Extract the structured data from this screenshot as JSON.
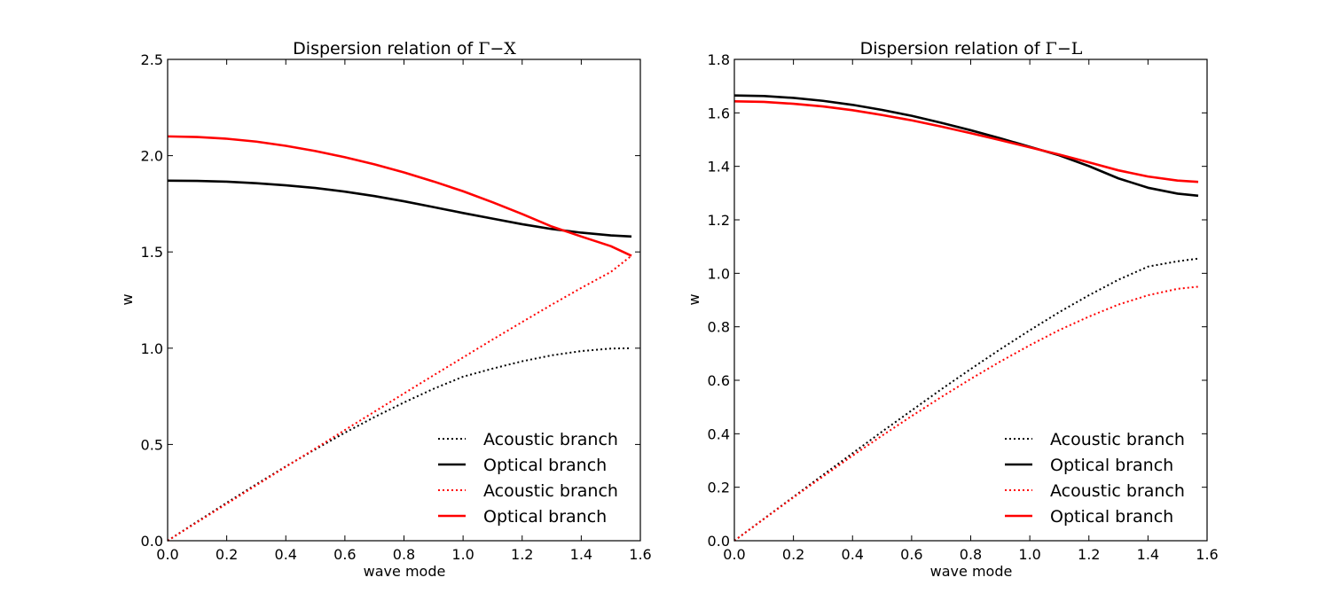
{
  "chart_data": [
    {
      "type": "line",
      "title": "Dispersion relation of ",
      "title_math": "Γ−X",
      "xlabel": "wave mode",
      "ylabel": "w",
      "xlim": [
        0,
        1.6
      ],
      "ylim": [
        0,
        2.5
      ],
      "xticks": [
        "0.0",
        "0.2",
        "0.4",
        "0.6",
        "0.8",
        "1.0",
        "1.2",
        "1.4",
        "1.6"
      ],
      "yticks": [
        "0.0",
        "0.5",
        "1.0",
        "1.5",
        "2.0",
        "2.5"
      ],
      "legend_position": "bottom-right",
      "series": [
        {
          "name": "Acoustic branch",
          "color": "#000000",
          "style": "dotted",
          "x": [
            0,
            0.1,
            0.2,
            0.3,
            0.4,
            0.5,
            0.6,
            0.7,
            0.8,
            0.9,
            1.0,
            1.1,
            1.2,
            1.3,
            1.4,
            1.5,
            1.57
          ],
          "y": [
            0,
            0.099,
            0.197,
            0.293,
            0.386,
            0.475,
            0.561,
            0.642,
            0.718,
            0.789,
            0.852,
            0.894,
            0.932,
            0.963,
            0.985,
            0.998,
            1.0
          ]
        },
        {
          "name": "Optical branch",
          "color": "#000000",
          "style": "solid",
          "x": [
            0,
            0.1,
            0.2,
            0.3,
            0.4,
            0.5,
            0.6,
            0.7,
            0.8,
            0.9,
            1.0,
            1.1,
            1.2,
            1.3,
            1.4,
            1.5,
            1.57
          ],
          "y": [
            1.87,
            1.869,
            1.865,
            1.857,
            1.846,
            1.832,
            1.813,
            1.79,
            1.763,
            1.733,
            1.702,
            1.673,
            1.644,
            1.619,
            1.6,
            1.586,
            1.58
          ]
        },
        {
          "name": "Acoustic branch",
          "color": "#ff0000",
          "style": "dotted",
          "x": [
            0,
            0.1,
            0.2,
            0.3,
            0.4,
            0.5,
            0.6,
            0.7,
            0.8,
            0.9,
            1.0,
            1.1,
            1.2,
            1.3,
            1.4,
            1.5,
            1.57
          ],
          "y": [
            0,
            0.096,
            0.192,
            0.288,
            0.384,
            0.479,
            0.575,
            0.67,
            0.765,
            0.859,
            0.952,
            1.045,
            1.136,
            1.226,
            1.313,
            1.396,
            1.48
          ]
        },
        {
          "name": "Optical branch",
          "color": "#ff0000",
          "style": "solid",
          "x": [
            0,
            0.1,
            0.2,
            0.3,
            0.4,
            0.5,
            0.6,
            0.7,
            0.8,
            0.9,
            1.0,
            1.1,
            1.2,
            1.3,
            1.4,
            1.5,
            1.57
          ],
          "y": [
            2.1,
            2.097,
            2.088,
            2.073,
            2.051,
            2.024,
            1.992,
            1.955,
            1.913,
            1.866,
            1.815,
            1.758,
            1.697,
            1.632,
            1.58,
            1.53,
            1.48
          ]
        }
      ]
    },
    {
      "type": "line",
      "title": "Dispersion relation of ",
      "title_math": "Γ−L",
      "xlabel": "wave mode",
      "ylabel": "w",
      "xlim": [
        0,
        1.6
      ],
      "ylim": [
        0,
        1.8
      ],
      "xticks": [
        "0.0",
        "0.2",
        "0.4",
        "0.6",
        "0.8",
        "1.0",
        "1.2",
        "1.4",
        "1.6"
      ],
      "yticks": [
        "0.0",
        "0.2",
        "0.4",
        "0.6",
        "0.8",
        "1.0",
        "1.2",
        "1.4",
        "1.6",
        "1.8"
      ],
      "legend_position": "bottom-right",
      "series": [
        {
          "name": "Acoustic branch",
          "color": "#000000",
          "style": "dotted",
          "x": [
            0,
            0.1,
            0.2,
            0.3,
            0.4,
            0.5,
            0.6,
            0.7,
            0.8,
            0.9,
            1.0,
            1.1,
            1.2,
            1.3,
            1.4,
            1.5,
            1.57
          ],
          "y": [
            0,
            0.082,
            0.164,
            0.246,
            0.327,
            0.408,
            0.487,
            0.566,
            0.642,
            0.716,
            0.787,
            0.855,
            0.918,
            0.976,
            1.025,
            1.045,
            1.055
          ]
        },
        {
          "name": "Optical branch",
          "color": "#000000",
          "style": "solid",
          "x": [
            0,
            0.1,
            0.2,
            0.3,
            0.4,
            0.5,
            0.6,
            0.7,
            0.8,
            0.9,
            1.0,
            1.1,
            1.2,
            1.3,
            1.4,
            1.5,
            1.57
          ],
          "y": [
            1.665,
            1.663,
            1.656,
            1.645,
            1.63,
            1.611,
            1.589,
            1.563,
            1.535,
            1.505,
            1.473,
            1.441,
            1.401,
            1.355,
            1.32,
            1.298,
            1.29
          ]
        },
        {
          "name": "Acoustic branch",
          "color": "#ff0000",
          "style": "dotted",
          "x": [
            0,
            0.1,
            0.2,
            0.3,
            0.4,
            0.5,
            0.6,
            0.7,
            0.8,
            0.9,
            1.0,
            1.1,
            1.2,
            1.3,
            1.4,
            1.5,
            1.57
          ],
          "y": [
            0,
            0.081,
            0.162,
            0.24,
            0.318,
            0.393,
            0.466,
            0.537,
            0.605,
            0.67,
            0.731,
            0.788,
            0.838,
            0.883,
            0.918,
            0.942,
            0.95
          ]
        },
        {
          "name": "Optical branch",
          "color": "#ff0000",
          "style": "solid",
          "x": [
            0,
            0.1,
            0.2,
            0.3,
            0.4,
            0.5,
            0.6,
            0.7,
            0.8,
            0.9,
            1.0,
            1.1,
            1.2,
            1.3,
            1.4,
            1.5,
            1.57
          ],
          "y": [
            1.643,
            1.641,
            1.634,
            1.624,
            1.61,
            1.592,
            1.572,
            1.549,
            1.524,
            1.498,
            1.471,
            1.444,
            1.415,
            1.385,
            1.362,
            1.347,
            1.342
          ]
        }
      ]
    }
  ]
}
